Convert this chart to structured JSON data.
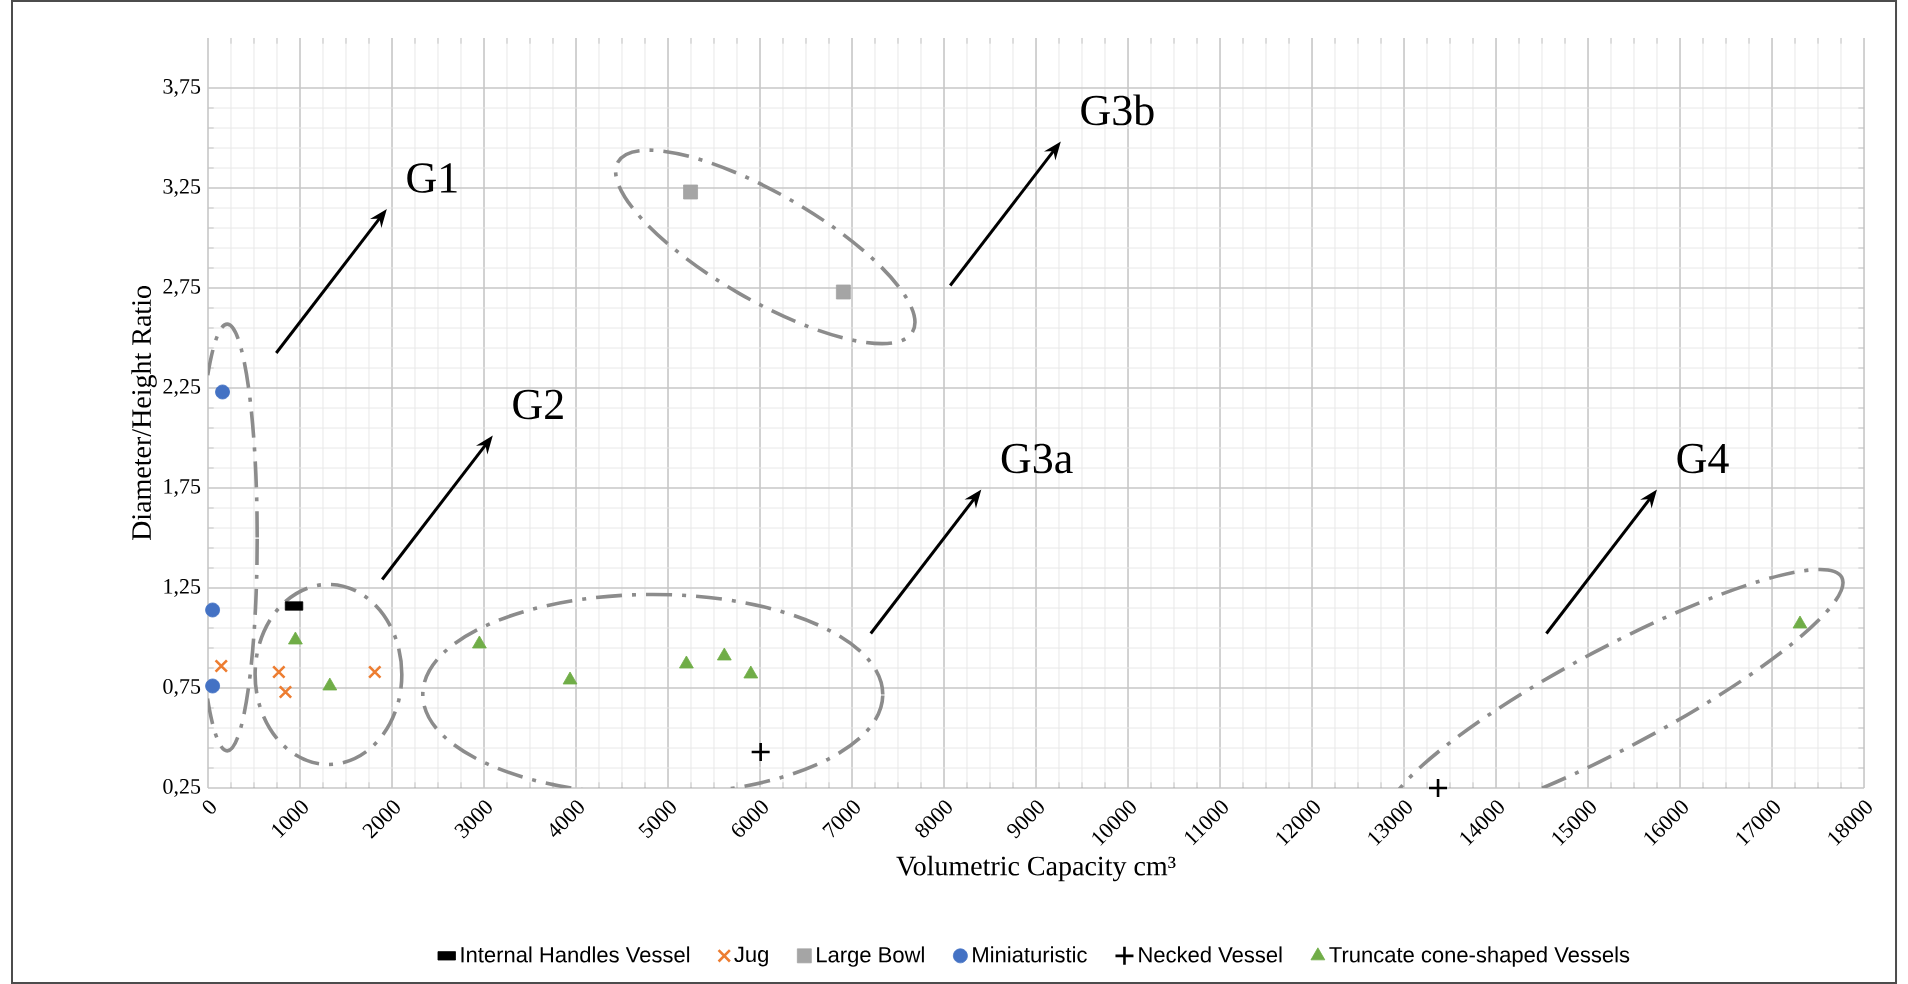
{
  "chart_data": {
    "type": "scatter",
    "xlabel": "Volumetric Capacity cm³",
    "ylabel": "Diameter/Height Ratio",
    "xlim": [
      0,
      18000
    ],
    "ylim": [
      0.25,
      4.0
    ],
    "xticks": [
      0,
      1000,
      2000,
      3000,
      4000,
      5000,
      6000,
      7000,
      8000,
      9000,
      10000,
      11000,
      12000,
      13000,
      14000,
      15000,
      16000,
      17000,
      18000
    ],
    "yticks": [
      {
        "value": 0.25,
        "label": "0,25"
      },
      {
        "value": 0.75,
        "label": "0,75"
      },
      {
        "value": 1.25,
        "label": "1,25"
      },
      {
        "value": 1.75,
        "label": "1,75"
      },
      {
        "value": 2.25,
        "label": "2,25"
      },
      {
        "value": 2.75,
        "label": "2,75"
      },
      {
        "value": 3.25,
        "label": "3,25"
      },
      {
        "value": 3.75,
        "label": "3,75"
      }
    ],
    "grid": true,
    "legend": "bottom",
    "series": [
      {
        "name": "Internal Handles Vessel",
        "color": "#000000",
        "x": [
          935
        ],
        "values": [
          1.16
        ]
      },
      {
        "name": "Jug",
        "color": "#ed7d31",
        "marker": "cross",
        "x": [
          144,
          770,
          842,
          1813
        ],
        "values": [
          0.86,
          0.83,
          0.73,
          0.83
        ]
      },
      {
        "name": "Large Bowl",
        "color": "#a5a5a5",
        "marker": "square",
        "x": [
          5245,
          6906
        ],
        "values": [
          3.23,
          2.73
        ]
      },
      {
        "name": "Miniaturistic",
        "color": "#4472c4",
        "marker": "circle",
        "x": [
          158,
          50,
          50
        ],
        "values": [
          2.23,
          1.14,
          0.76
        ]
      },
      {
        "name": "Necked Vessel",
        "color": "#000000",
        "marker": "plus",
        "x": [
          6007,
          13370
        ],
        "values": [
          0.43,
          0.25
        ]
      },
      {
        "name": "Truncate cone-shaped Vessels",
        "color": "#70ad47",
        "marker": "triangle",
        "x": [
          950,
          1324,
          2950,
          3935,
          5200,
          5612,
          5900,
          17304
        ],
        "values": [
          0.99,
          0.76,
          0.97,
          0.79,
          0.87,
          0.91,
          0.82,
          1.07
        ]
      }
    ],
    "annotations": [
      "G1",
      "G2",
      "G3b",
      "G3a",
      "G4"
    ]
  }
}
